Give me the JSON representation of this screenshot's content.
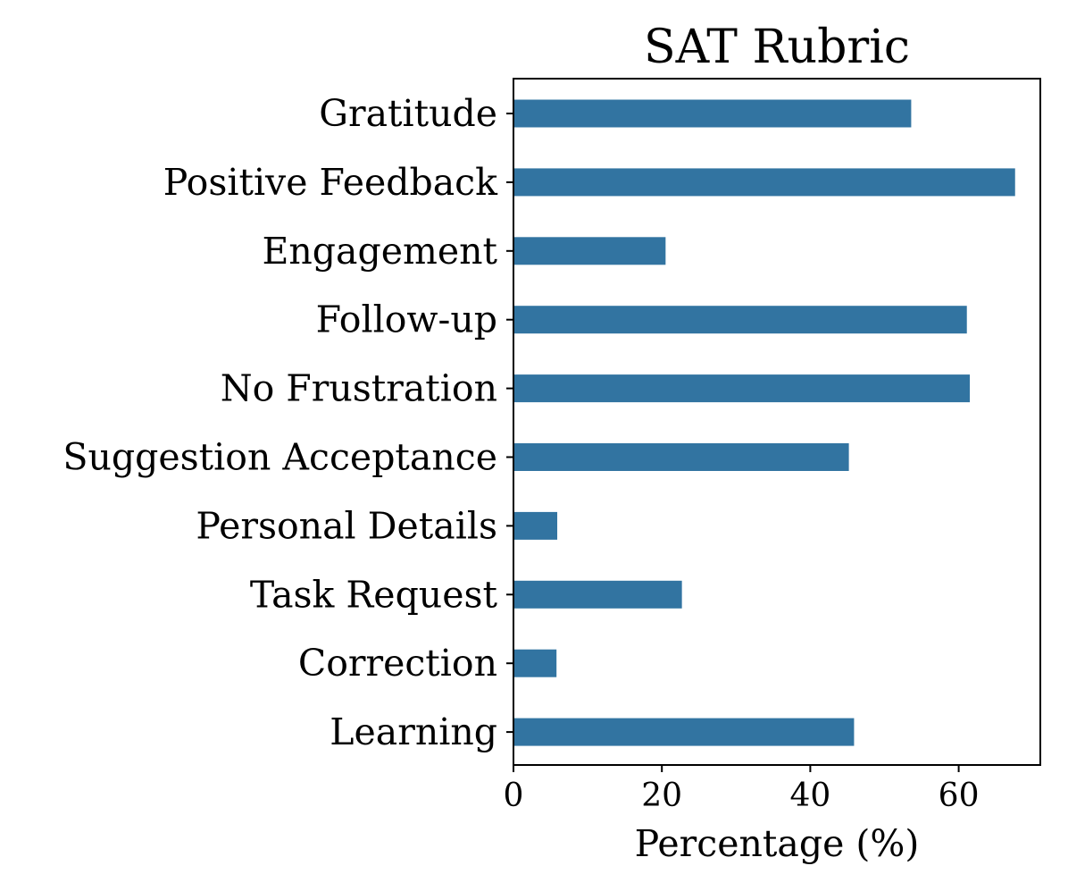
{
  "chart_data": {
    "type": "bar",
    "orientation": "horizontal",
    "title": "SAT Rubric",
    "xlabel": "Percentage (%)",
    "ylabel": "",
    "categories": [
      "Gratitude",
      "Positive Feedback",
      "Engagement",
      "Follow-up",
      "No Frustration",
      "Suggestion Acceptance",
      "Personal Details",
      "Task Request",
      "Correction",
      "Learning"
    ],
    "values": [
      53.6,
      67.6,
      20.5,
      61.1,
      61.5,
      45.2,
      5.9,
      22.7,
      5.8,
      45.9
    ],
    "xlim": [
      0,
      71
    ],
    "xticks": [
      0,
      20,
      40,
      60
    ],
    "xtick_labels": [
      "0",
      "20",
      "40",
      "60"
    ],
    "bar_color": "#3274a1",
    "grid": false,
    "legend": "none"
  }
}
